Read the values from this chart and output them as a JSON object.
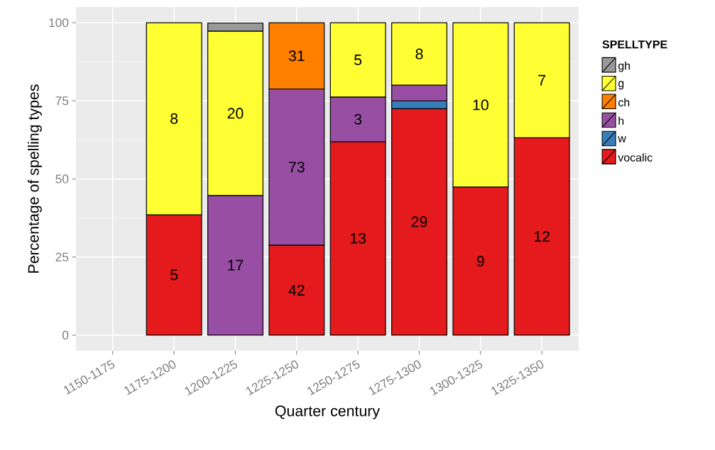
{
  "chart_data": {
    "type": "bar",
    "stacked": true,
    "xlabel": "Quarter century",
    "ylabel": "Percentage of spelling types",
    "legend_title": "SPELLTYPE",
    "legend": "right",
    "grid": true,
    "categories": [
      "1150-1175",
      "1175-1200",
      "1200-1225",
      "1225-1250",
      "1250-1275",
      "1275-1300",
      "1300-1325",
      "1325-1350"
    ],
    "ylim": [
      -5,
      105
    ],
    "yticks": [
      0,
      25,
      50,
      75,
      100
    ],
    "series": [
      {
        "name": "vocalic",
        "color": "#e41a1c",
        "values": [
          null,
          38.5,
          null,
          28.8,
          61.9,
          72.5,
          47.4,
          63.2
        ]
      },
      {
        "name": "w",
        "color": "#377eb8",
        "values": [
          null,
          null,
          null,
          null,
          null,
          2.5,
          null,
          null
        ]
      },
      {
        "name": "h",
        "color": "#984ea3",
        "values": [
          null,
          null,
          44.7,
          50.0,
          14.3,
          5.0,
          null,
          null
        ]
      },
      {
        "name": "ch",
        "color": "#ff7f00",
        "values": [
          null,
          null,
          null,
          21.2,
          null,
          null,
          null,
          null
        ]
      },
      {
        "name": "g",
        "color": "#ffff33",
        "values": [
          null,
          61.5,
          52.6,
          null,
          23.8,
          20.0,
          52.6,
          36.8
        ]
      },
      {
        "name": "gh",
        "color": "#999999",
        "values": [
          null,
          null,
          2.6,
          null,
          null,
          null,
          null,
          null
        ]
      }
    ],
    "annotations": [
      {
        "text": "5",
        "x": "1175-1200",
        "y": 19.3
      },
      {
        "text": "8",
        "x": "1175-1200",
        "y": 69.3
      },
      {
        "text": "17",
        "x": "1200-1225",
        "y": 22.4
      },
      {
        "text": "20",
        "x": "1200-1225",
        "y": 71.0
      },
      {
        "text": "42",
        "x": "1225-1250",
        "y": 14.4
      },
      {
        "text": "73",
        "x": "1225-1250",
        "y": 53.8
      },
      {
        "text": "31",
        "x": "1225-1250",
        "y": 89.4
      },
      {
        "text": "13",
        "x": "1250-1275",
        "y": 31.0
      },
      {
        "text": "3",
        "x": "1250-1275",
        "y": 69.1
      },
      {
        "text": "5",
        "x": "1250-1275",
        "y": 88.1
      },
      {
        "text": "29",
        "x": "1275-1300",
        "y": 36.3
      },
      {
        "text": "8",
        "x": "1275-1300",
        "y": 90.0
      },
      {
        "text": "9",
        "x": "1300-1325",
        "y": 23.7
      },
      {
        "text": "10",
        "x": "1300-1325",
        "y": 73.7
      },
      {
        "text": "12",
        "x": "1325-1350",
        "y": 31.6
      },
      {
        "text": "7",
        "x": "1325-1350",
        "y": 81.6
      }
    ]
  }
}
